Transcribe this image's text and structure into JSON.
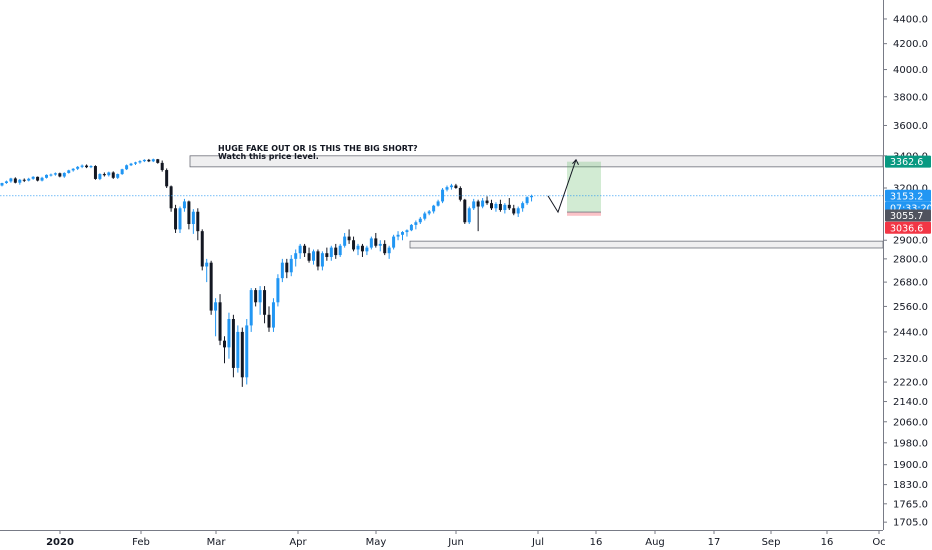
{
  "chart_data": {
    "type": "candlestick",
    "x_axis": {
      "labels": [
        "2020",
        "Feb",
        "Mar",
        "Apr",
        "May",
        "Jun",
        "Jul",
        "16",
        "Aug",
        "17",
        "Sep",
        "16",
        "Oc"
      ],
      "bold_label": "2020"
    },
    "y_axis": {
      "scale": "log",
      "ticks": [
        "4400.0",
        "4200.0",
        "4000.0",
        "3800.0",
        "3600.0",
        "3400.0",
        "3200.0",
        "2900.0",
        "2800.0",
        "2680.0",
        "2560.0",
        "2440.0",
        "2320.0",
        "2220.0",
        "2140.0",
        "2060.0",
        "1980.0",
        "1900.0",
        "1830.0",
        "1765.0",
        "1705.0"
      ],
      "range": [
        1680,
        4560
      ]
    },
    "annotations": {
      "line1": "HUGE FAKE OUT OR IS THIS THE BIG SHORT?",
      "line2": "Watch this price level."
    },
    "price_badges": {
      "target": "3362.6",
      "last": "3153.2",
      "countdown": "07:33:20",
      "level": "3055.7",
      "stop": "3036.6"
    },
    "zones": [
      {
        "name": "resistance",
        "from": 3330,
        "to": 3400
      },
      {
        "name": "support",
        "from": 2858,
        "to": 2895
      }
    ],
    "position": {
      "type": "long",
      "entry": 3058,
      "target": 3362.6,
      "stop": 3036.6
    },
    "projected_path": [
      3153,
      3058,
      3375
    ],
    "last_price": 3153.2,
    "candles": [
      [
        3215,
        3232,
        3210,
        3230
      ],
      [
        3230,
        3245,
        3225,
        3240
      ],
      [
        3240,
        3262,
        3232,
        3258
      ],
      [
        3258,
        3265,
        3228,
        3232
      ],
      [
        3232,
        3255,
        3220,
        3250
      ],
      [
        3250,
        3258,
        3236,
        3245
      ],
      [
        3245,
        3262,
        3240,
        3256
      ],
      [
        3256,
        3272,
        3250,
        3268
      ],
      [
        3268,
        3270,
        3240,
        3245
      ],
      [
        3245,
        3268,
        3240,
        3262
      ],
      [
        3262,
        3283,
        3258,
        3280
      ],
      [
        3280,
        3288,
        3270,
        3282
      ],
      [
        3282,
        3295,
        3275,
        3290
      ],
      [
        3290,
        3294,
        3265,
        3270
      ],
      [
        3270,
        3296,
        3262,
        3292
      ],
      [
        3292,
        3312,
        3288,
        3308
      ],
      [
        3308,
        3322,
        3300,
        3318
      ],
      [
        3318,
        3335,
        3310,
        3330
      ],
      [
        3330,
        3345,
        3322,
        3338
      ],
      [
        3338,
        3345,
        3322,
        3328
      ],
      [
        3328,
        3340,
        3322,
        3335
      ],
      [
        3335,
        3340,
        3250,
        3255
      ],
      [
        3255,
        3290,
        3248,
        3285
      ],
      [
        3285,
        3295,
        3270,
        3278
      ],
      [
        3278,
        3300,
        3270,
        3295
      ],
      [
        3295,
        3302,
        3255,
        3262
      ],
      [
        3262,
        3288,
        3255,
        3285
      ],
      [
        3285,
        3318,
        3280,
        3315
      ],
      [
        3315,
        3345,
        3310,
        3340
      ],
      [
        3340,
        3355,
        3335,
        3350
      ],
      [
        3350,
        3362,
        3342,
        3358
      ],
      [
        3358,
        3372,
        3350,
        3366
      ],
      [
        3366,
        3378,
        3360,
        3374
      ],
      [
        3374,
        3380,
        3360,
        3365
      ],
      [
        3365,
        3382,
        3360,
        3378
      ],
      [
        3378,
        3380,
        3350,
        3355
      ],
      [
        3355,
        3370,
        3300,
        3310
      ],
      [
        3310,
        3320,
        3200,
        3210
      ],
      [
        3210,
        3215,
        3060,
        3080
      ],
      [
        3080,
        3100,
        2940,
        2960
      ],
      [
        2960,
        3090,
        2940,
        3080
      ],
      [
        3080,
        3135,
        3060,
        3120
      ],
      [
        3120,
        3125,
        2960,
        2990
      ],
      [
        2990,
        3075,
        2935,
        3060
      ],
      [
        3060,
        3080,
        2900,
        2950
      ],
      [
        2950,
        2960,
        2740,
        2760
      ],
      [
        2760,
        2800,
        2680,
        2780
      ],
      [
        2780,
        2790,
        2520,
        2540
      ],
      [
        2540,
        2600,
        2420,
        2580
      ],
      [
        2580,
        2620,
        2380,
        2400
      ],
      [
        2400,
        2420,
        2300,
        2370
      ],
      [
        2370,
        2530,
        2320,
        2500
      ],
      [
        2500,
        2520,
        2240,
        2280
      ],
      [
        2280,
        2470,
        2260,
        2440
      ],
      [
        2440,
        2460,
        2200,
        2240
      ],
      [
        2240,
        2500,
        2210,
        2470
      ],
      [
        2470,
        2650,
        2440,
        2640
      ],
      [
        2640,
        2650,
        2560,
        2580
      ],
      [
        2580,
        2660,
        2520,
        2640
      ],
      [
        2640,
        2660,
        2480,
        2520
      ],
      [
        2520,
        2560,
        2440,
        2460
      ],
      [
        2460,
        2600,
        2440,
        2580
      ],
      [
        2580,
        2720,
        2560,
        2700
      ],
      [
        2700,
        2800,
        2680,
        2780
      ],
      [
        2780,
        2800,
        2700,
        2730
      ],
      [
        2730,
        2820,
        2710,
        2800
      ],
      [
        2800,
        2850,
        2760,
        2830
      ],
      [
        2830,
        2880,
        2800,
        2870
      ],
      [
        2870,
        2880,
        2810,
        2830
      ],
      [
        2830,
        2860,
        2780,
        2790
      ],
      [
        2790,
        2850,
        2770,
        2840
      ],
      [
        2840,
        2850,
        2740,
        2760
      ],
      [
        2760,
        2840,
        2740,
        2830
      ],
      [
        2830,
        2860,
        2790,
        2810
      ],
      [
        2810,
        2870,
        2790,
        2860
      ],
      [
        2860,
        2880,
        2800,
        2820
      ],
      [
        2820,
        2880,
        2810,
        2870
      ],
      [
        2870,
        2940,
        2860,
        2920
      ],
      [
        2920,
        2960,
        2880,
        2900
      ],
      [
        2900,
        2920,
        2840,
        2850
      ],
      [
        2850,
        2880,
        2820,
        2870
      ],
      [
        2870,
        2880,
        2810,
        2840
      ],
      [
        2840,
        2870,
        2820,
        2860
      ],
      [
        2860,
        2920,
        2850,
        2910
      ],
      [
        2910,
        2940,
        2860,
        2870
      ],
      [
        2870,
        2900,
        2840,
        2880
      ],
      [
        2880,
        2900,
        2820,
        2830
      ],
      [
        2830,
        2870,
        2800,
        2860
      ],
      [
        2860,
        2930,
        2850,
        2920
      ],
      [
        2920,
        2950,
        2900,
        2930
      ],
      [
        2930,
        2950,
        2900,
        2945
      ],
      [
        2945,
        2960,
        2920,
        2955
      ],
      [
        2955,
        2990,
        2950,
        2985
      ],
      [
        2985,
        3010,
        2960,
        3000
      ],
      [
        3000,
        3030,
        2990,
        3020
      ],
      [
        3020,
        3060,
        3010,
        3050
      ],
      [
        3050,
        3070,
        3040,
        3062
      ],
      [
        3062,
        3100,
        3050,
        3095
      ],
      [
        3095,
        3130,
        3090,
        3120
      ],
      [
        3120,
        3200,
        3110,
        3190
      ],
      [
        3190,
        3215,
        3180,
        3205
      ],
      [
        3205,
        3225,
        3190,
        3215
      ],
      [
        3215,
        3225,
        3195,
        3200
      ],
      [
        3200,
        3210,
        3120,
        3130
      ],
      [
        3130,
        3135,
        2990,
        3000
      ],
      [
        3000,
        3090,
        2990,
        3080
      ],
      [
        3080,
        3135,
        3070,
        3120
      ],
      [
        3120,
        3130,
        2950,
        3090
      ],
      [
        3090,
        3140,
        3080,
        3125
      ],
      [
        3125,
        3150,
        3100,
        3110
      ],
      [
        3110,
        3130,
        3070,
        3080
      ],
      [
        3080,
        3115,
        3060,
        3105
      ],
      [
        3105,
        3130,
        3060,
        3070
      ],
      [
        3070,
        3110,
        3050,
        3100
      ],
      [
        3100,
        3140,
        3070,
        3080
      ],
      [
        3080,
        3100,
        3040,
        3050
      ],
      [
        3050,
        3090,
        3030,
        3080
      ],
      [
        3080,
        3120,
        3060,
        3110
      ],
      [
        3110,
        3150,
        3100,
        3145
      ],
      [
        3145,
        3160,
        3120,
        3153
      ]
    ]
  }
}
